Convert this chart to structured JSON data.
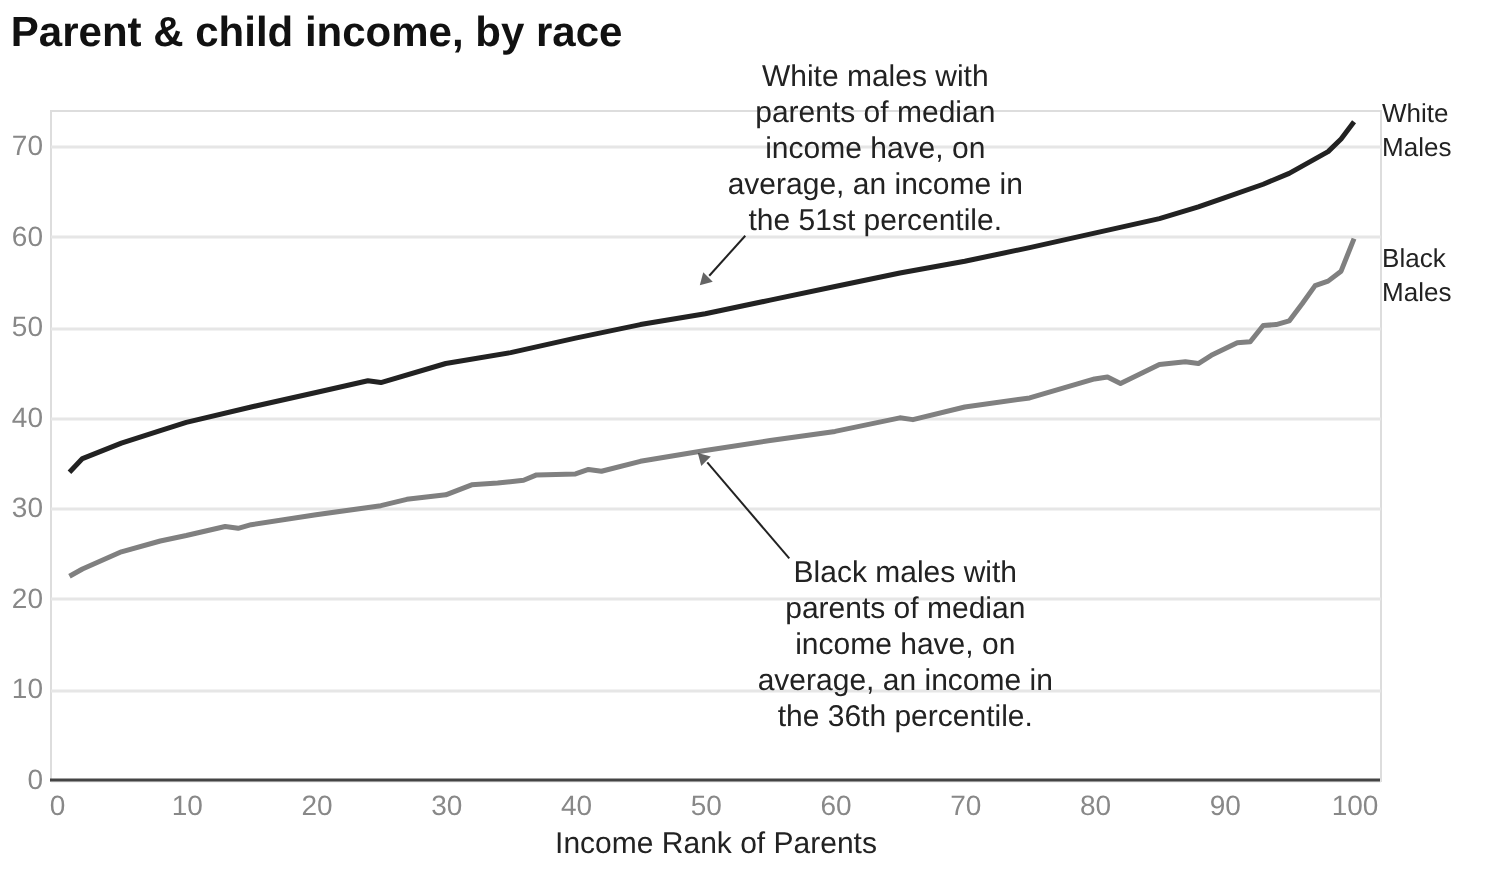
{
  "chart_data": {
    "type": "line",
    "title": "Parent & child income, by race",
    "xlabel": "Income Rank of Parents",
    "xlim": [
      -0.5,
      102
    ],
    "xticks": [
      0,
      10,
      20,
      30,
      40,
      50,
      60,
      70,
      80,
      90,
      100
    ],
    "ylim": [
      0,
      74
    ],
    "yticks": [
      0,
      10,
      20,
      30,
      40,
      50,
      60,
      70
    ],
    "grid": "y",
    "legend": false,
    "marker": "none",
    "line_style": "solid",
    "series": [
      {
        "name": "White\nMales",
        "color": "#222222",
        "x": [
          1,
          2,
          5,
          8,
          10,
          15,
          20,
          24,
          25,
          30,
          35,
          40,
          45,
          50,
          55,
          60,
          65,
          70,
          75,
          80,
          85,
          88,
          90,
          93,
          95,
          97,
          98,
          99,
          100
        ],
        "values": [
          34,
          35.5,
          37.2,
          38.6,
          39.5,
          41.2,
          42.8,
          44.1,
          43.9,
          46,
          47.2,
          48.8,
          50.3,
          51.5,
          53,
          54.5,
          56,
          57.3,
          58.8,
          60.4,
          62,
          63.3,
          64.3,
          65.8,
          67,
          68.6,
          69.4,
          70.8,
          72.7
        ]
      },
      {
        "name": "Black\nMales",
        "color": "#808080",
        "x": [
          1,
          2,
          5,
          8,
          10,
          13,
          14,
          15,
          20,
          25,
          27,
          30,
          32,
          34,
          36,
          37,
          40,
          41,
          42,
          45,
          50,
          55,
          60,
          65,
          66,
          70,
          75,
          80,
          81,
          82,
          85,
          87,
          88,
          89,
          90,
          91,
          92,
          93,
          94,
          95,
          96,
          97,
          98,
          99,
          100
        ],
        "values": [
          22.5,
          23.3,
          25.2,
          26.4,
          27,
          28,
          27.8,
          28.2,
          29.3,
          30.3,
          31,
          31.5,
          32.6,
          32.8,
          33.1,
          33.7,
          33.8,
          34.3,
          34.1,
          35.2,
          36.4,
          37.5,
          38.5,
          40,
          39.8,
          41.2,
          42.2,
          44.3,
          44.5,
          43.8,
          45.9,
          46.2,
          46,
          46.9,
          47.6,
          48.3,
          48.4,
          50.2,
          50.3,
          50.7,
          52.6,
          54.6,
          55.1,
          56.2,
          59.8
        ]
      }
    ],
    "annotations": [
      {
        "text": "White males with\nparents of median\nincome have, on\naverage, an income in\nthe 51st percentile.",
        "x": 50,
        "y": 51.5
      },
      {
        "text": "Black males with\nparents of median\nincome have, on\naverage, an income in\nthe 36th percentile.",
        "x": 50,
        "y": 36.4
      }
    ]
  }
}
